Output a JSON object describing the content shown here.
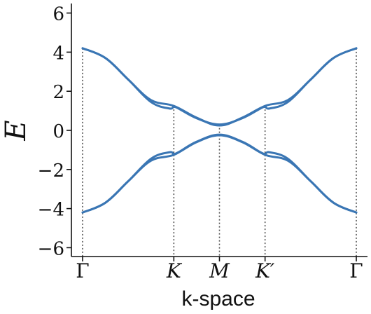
{
  "chart_data": {
    "type": "line",
    "title": "",
    "xlabel": "k-space",
    "ylabel": "E",
    "ylim": [
      -6.5,
      6.5
    ],
    "yticks": [
      6,
      4,
      2,
      0,
      -2,
      -4,
      -6
    ],
    "ytick_labels": [
      "6",
      "4",
      "2",
      "0",
      "−2",
      "−4",
      "−6"
    ],
    "xticks": [
      {
        "x": 0.0,
        "label": "Γ"
      },
      {
        "x": 1.0,
        "label": "K"
      },
      {
        "x": 1.5,
        "label": "M"
      },
      {
        "x": 2.0,
        "label": "K′"
      },
      {
        "x": 3.0,
        "label": "Γ"
      }
    ],
    "xlim": [
      -0.12,
      3.1
    ],
    "grid": false,
    "vertical_guides_at_ticks": true,
    "line_color": "#3a76b4",
    "guide_color": "#555555",
    "series": [
      {
        "x": [
          0.0,
          0.25,
          0.5,
          0.75,
          1.0,
          1.25,
          1.5,
          1.75,
          2.0,
          2.25,
          2.5,
          2.75,
          3.0
        ],
        "values": [
          4.2,
          3.7,
          2.6,
          1.55,
          1.25,
          0.65,
          0.25,
          0.65,
          1.25,
          1.55,
          2.6,
          3.7,
          4.2
        ]
      },
      {
        "x": [
          0.0,
          0.25,
          0.5,
          0.75,
          0.95,
          1.0,
          1.05,
          1.25,
          1.5,
          1.75,
          1.95,
          2.0,
          2.05,
          2.25,
          2.5,
          2.75,
          3.0
        ],
        "values": [
          4.2,
          3.7,
          2.6,
          1.45,
          1.12,
          1.2,
          1.12,
          0.62,
          0.3,
          0.62,
          1.12,
          1.2,
          1.12,
          1.45,
          2.6,
          3.7,
          4.2
        ]
      },
      {
        "x": [
          0.0,
          0.25,
          0.5,
          0.75,
          1.0,
          1.25,
          1.5,
          1.75,
          2.0,
          2.25,
          2.5,
          2.75,
          3.0
        ],
        "values": [
          -4.2,
          -3.7,
          -2.6,
          -1.55,
          -1.25,
          -0.6,
          -0.25,
          -0.6,
          -1.25,
          -1.55,
          -2.6,
          -3.7,
          -4.2
        ]
      },
      {
        "x": [
          0.0,
          0.25,
          0.5,
          0.75,
          0.95,
          1.0,
          1.05,
          1.25,
          1.5,
          1.75,
          1.95,
          2.0,
          2.05,
          2.25,
          2.5,
          2.75,
          3.0
        ],
        "values": [
          -4.2,
          -3.7,
          -2.6,
          -1.45,
          -1.12,
          -1.2,
          -1.12,
          -0.58,
          -0.22,
          -0.58,
          -1.12,
          -1.2,
          -1.12,
          -1.45,
          -2.6,
          -3.7,
          -4.2
        ]
      }
    ]
  }
}
